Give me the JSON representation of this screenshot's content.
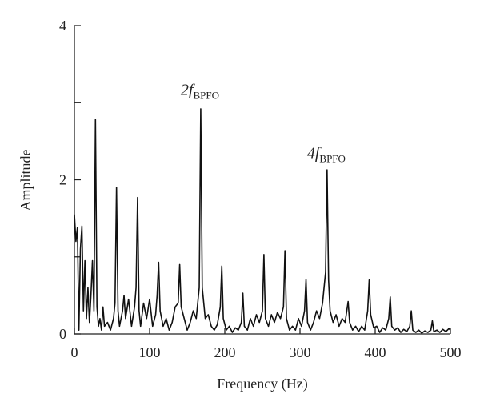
{
  "chart_data": {
    "type": "line",
    "xlabel": "Frequency (Hz)",
    "ylabel": "Amplitude",
    "xlim": [
      0,
      500
    ],
    "xticks": [
      0,
      100,
      200,
      300,
      400,
      500
    ],
    "ylim": [
      0,
      4
    ],
    "yticks": [
      0,
      2,
      4
    ],
    "yminorticks": [
      1,
      3
    ],
    "annotations": [
      {
        "text": "2f",
        "sub": "BPFO",
        "x": 167,
        "y": 3.1
      },
      {
        "text": "4f",
        "sub": "BPFO",
        "x": 335,
        "y": 2.28
      }
    ],
    "x": [
      0,
      2,
      4,
      6,
      8,
      10,
      12,
      14,
      16,
      18,
      20,
      22,
      24,
      26,
      28,
      30,
      32,
      34,
      36,
      38,
      40,
      44,
      48,
      52,
      54,
      56,
      58,
      60,
      64,
      66,
      68,
      72,
      76,
      80,
      82,
      84,
      86,
      88,
      92,
      96,
      100,
      104,
      108,
      110,
      112,
      114,
      118,
      122,
      126,
      130,
      134,
      138,
      140,
      142,
      146,
      150,
      154,
      158,
      162,
      166,
      168,
      170,
      174,
      178,
      182,
      186,
      190,
      194,
      196,
      198,
      202,
      206,
      210,
      214,
      218,
      222,
      224,
      226,
      230,
      234,
      238,
      242,
      246,
      250,
      252,
      254,
      258,
      262,
      266,
      270,
      274,
      278,
      280,
      282,
      286,
      290,
      294,
      298,
      302,
      306,
      308,
      310,
      314,
      318,
      322,
      326,
      330,
      334,
      336,
      338,
      340,
      344,
      348,
      352,
      356,
      360,
      364,
      366,
      370,
      374,
      378,
      382,
      386,
      390,
      392,
      394,
      398,
      402,
      406,
      410,
      414,
      418,
      420,
      422,
      426,
      430,
      434,
      438,
      442,
      446,
      448,
      450,
      454,
      458,
      462,
      466,
      470,
      474,
      476,
      478,
      482,
      486,
      490,
      494,
      498,
      500
    ],
    "series": [
      {
        "color": "#111111",
        "values": [
          1.55,
          1.2,
          1.38,
          0.05,
          1.1,
          1.4,
          0.3,
          0.95,
          0.2,
          0.6,
          0.15,
          0.5,
          0.95,
          0.3,
          2.78,
          0.35,
          0.1,
          0.2,
          0.05,
          0.35,
          0.1,
          0.15,
          0.05,
          0.2,
          0.4,
          1.9,
          0.3,
          0.1,
          0.3,
          0.5,
          0.2,
          0.45,
          0.1,
          0.35,
          0.6,
          1.77,
          0.3,
          0.1,
          0.4,
          0.2,
          0.45,
          0.1,
          0.25,
          0.5,
          0.93,
          0.3,
          0.1,
          0.2,
          0.05,
          0.15,
          0.35,
          0.4,
          0.9,
          0.35,
          0.2,
          0.05,
          0.15,
          0.3,
          0.2,
          0.6,
          2.92,
          0.6,
          0.2,
          0.25,
          0.1,
          0.05,
          0.12,
          0.35,
          0.88,
          0.2,
          0.05,
          0.1,
          0.02,
          0.08,
          0.05,
          0.15,
          0.53,
          0.1,
          0.05,
          0.2,
          0.1,
          0.25,
          0.15,
          0.3,
          1.03,
          0.2,
          0.1,
          0.25,
          0.15,
          0.28,
          0.2,
          0.35,
          1.08,
          0.2,
          0.05,
          0.1,
          0.05,
          0.2,
          0.1,
          0.3,
          0.71,
          0.15,
          0.05,
          0.15,
          0.3,
          0.2,
          0.4,
          0.8,
          2.13,
          0.7,
          0.3,
          0.15,
          0.25,
          0.1,
          0.2,
          0.15,
          0.42,
          0.15,
          0.05,
          0.1,
          0.03,
          0.1,
          0.05,
          0.3,
          0.7,
          0.25,
          0.08,
          0.1,
          0.02,
          0.08,
          0.05,
          0.2,
          0.48,
          0.1,
          0.05,
          0.08,
          0.02,
          0.06,
          0.03,
          0.1,
          0.3,
          0.05,
          0.02,
          0.05,
          0.01,
          0.04,
          0.02,
          0.05,
          0.17,
          0.03,
          0.05,
          0.02,
          0.06,
          0.03,
          0.07,
          0.05
        ]
      }
    ]
  }
}
